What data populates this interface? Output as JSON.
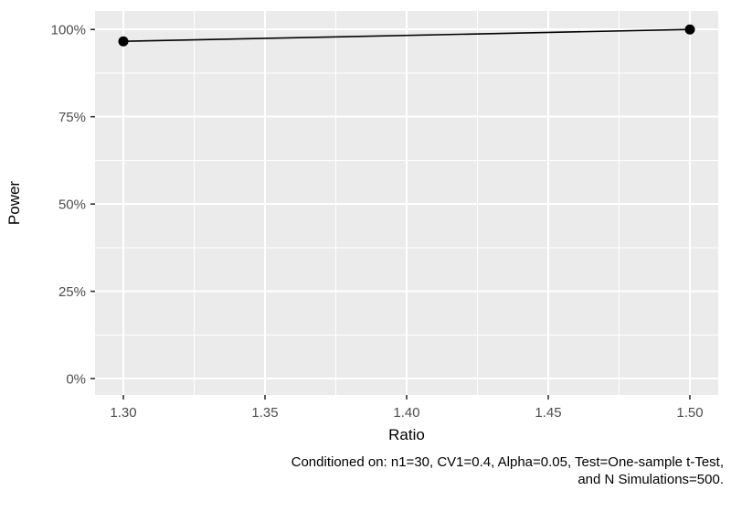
{
  "chart_data": {
    "type": "line",
    "title": "",
    "xlabel": "Ratio",
    "ylabel": "Power",
    "series": [
      {
        "name": "Power",
        "x": [
          1.3,
          1.5
        ],
        "y_percent": [
          96.6,
          100.0
        ]
      }
    ],
    "x_ticks": [
      1.3,
      1.35,
      1.4,
      1.45,
      1.5
    ],
    "x_tick_labels": [
      "1.30",
      "1.35",
      "1.40",
      "1.45",
      "1.50"
    ],
    "y_ticks_percent": [
      0,
      25,
      50,
      75,
      100
    ],
    "y_tick_labels": [
      "0%",
      "25%",
      "50%",
      "75%",
      "100%"
    ],
    "xlim": [
      1.29,
      1.51
    ],
    "ylim_percent": [
      -4.7,
      105.3
    ],
    "grid": {
      "major": true,
      "minor": true
    },
    "legend": "none",
    "caption_lines": [
      "Conditioned on: n1=30, CV1=0.4, Alpha=0.05, Test=One-sample t-Test,",
      "and N Simulations=500."
    ],
    "colors": {
      "page_background": "#ffffff",
      "panel_background": "#ebebeb",
      "gridline": "#ffffff",
      "line": "#000000",
      "point": "#000000",
      "tick_mark": "#333333",
      "tick_label": "#4d4d4d",
      "axis_title": "#000000",
      "caption": "#000000"
    }
  }
}
